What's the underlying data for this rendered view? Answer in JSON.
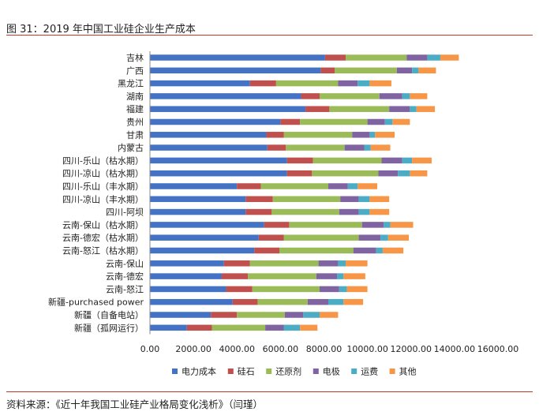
{
  "figure": {
    "title": "图 31：2019 年中国工业硅企业生产成本",
    "source": "资料来源：《近十年我国工业硅产业格局变化浅析》（闫瑾）"
  },
  "chart_data": {
    "type": "bar",
    "orientation": "horizontal",
    "stacked": true,
    "title": "",
    "xlabel": "",
    "ylabel": "",
    "xlim": [
      0,
      16000
    ],
    "xticks": [
      "0.00",
      "2000.00",
      "4000.00",
      "6000.00",
      "8000.00",
      "10000.00",
      "12000.00",
      "14000.00",
      "16000.00"
    ],
    "grid": false,
    "legend_position": "bottom",
    "categories": [
      "吉林",
      "广西",
      "黑龙江",
      "湖南",
      "福建",
      "贵州",
      "甘肃",
      "内蒙古",
      "四川-乐山（枯水期）",
      "四川-凉山（枯水期）",
      "四川-乐山（丰水期）",
      "四川-凉山（丰水期）",
      "四川-阿坝",
      "云南-保山（枯水期）",
      "云南-德宏（枯水期）",
      "云南-怒江（枯水期）",
      "云南-保山",
      "云南-德宏",
      "云南-怒江",
      "新疆-purchased power",
      "新疆（自备电站）",
      "新疆（孤网运行）"
    ],
    "series": [
      {
        "name": "电力成本",
        "color": "#4472c4",
        "values": [
          8050,
          7850,
          4600,
          6950,
          7150,
          6000,
          5350,
          5400,
          6300,
          6300,
          4000,
          4400,
          4400,
          5250,
          5000,
          4800,
          3400,
          3300,
          3500,
          3800,
          2800,
          1700
        ]
      },
      {
        "name": "硅石",
        "color": "#c0504d",
        "values": [
          950,
          650,
          1200,
          850,
          1100,
          900,
          800,
          850,
          1200,
          1150,
          1100,
          1250,
          1200,
          1150,
          1150,
          1150,
          1200,
          1200,
          1200,
          1150,
          1200,
          1150
        ]
      },
      {
        "name": "还原剂",
        "color": "#9bbb59",
        "values": [
          2800,
          2850,
          2850,
          2750,
          2750,
          3100,
          3150,
          2700,
          3150,
          3050,
          3100,
          3100,
          3100,
          3350,
          3450,
          3400,
          3150,
          3150,
          3100,
          2300,
          2200,
          2450
        ]
      },
      {
        "name": "电极",
        "color": "#8064a2",
        "values": [
          950,
          700,
          900,
          1050,
          950,
          800,
          800,
          900,
          950,
          900,
          900,
          850,
          900,
          1000,
          1000,
          1050,
          900,
          950,
          900,
          950,
          850,
          850
        ]
      },
      {
        "name": "运费",
        "color": "#4bacc6",
        "values": [
          600,
          300,
          550,
          350,
          300,
          350,
          250,
          300,
          450,
          550,
          450,
          500,
          500,
          300,
          350,
          300,
          350,
          300,
          350,
          700,
          750,
          750
        ]
      },
      {
        "name": "其他",
        "color": "#f79646",
        "values": [
          850,
          800,
          1000,
          800,
          850,
          800,
          900,
          900,
          900,
          800,
          900,
          900,
          900,
          1050,
          950,
          950,
          1000,
          1000,
          950,
          900,
          850,
          800
        ]
      }
    ]
  }
}
